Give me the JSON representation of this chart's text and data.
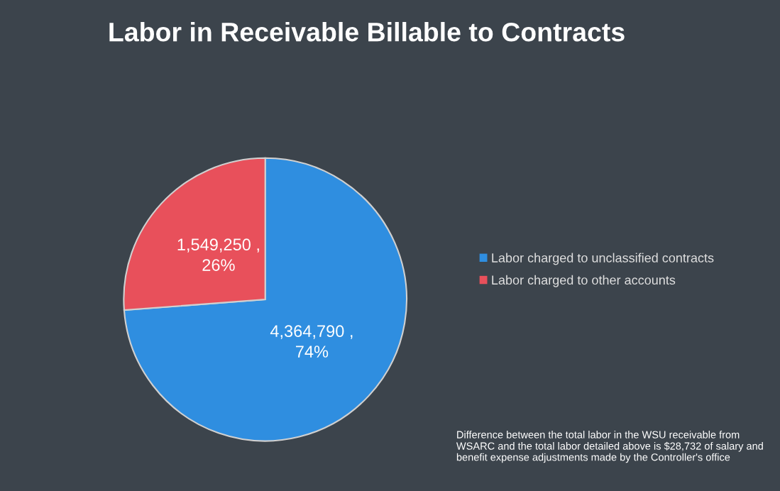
{
  "chart_data": {
    "type": "pie",
    "title": "Labor in Receivable Billable to Contracts",
    "categories": [
      "Labor charged to unclassified contracts",
      "Labor charged to other accounts"
    ],
    "values": [
      4364790,
      1549250
    ],
    "colors": [
      "#2f8ee0",
      "#e8505b"
    ],
    "value_labels": [
      "4,364,790 ,\n74%",
      "1,549,250 ,\n26%"
    ],
    "legend": "right",
    "annotations": [
      "Difference between the total labor in the WSU receivable from WSARC and the total labor detailed above is $28,732 of salary and benefit expense adjustments made by the Controller's office"
    ]
  }
}
